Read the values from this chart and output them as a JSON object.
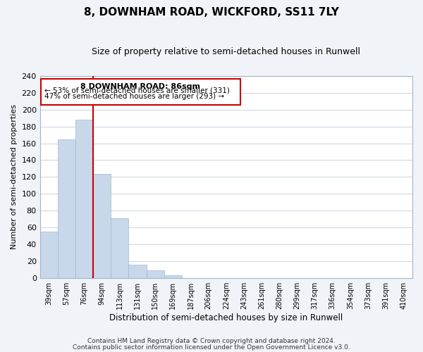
{
  "title": "8, DOWNHAM ROAD, WICKFORD, SS11 7LY",
  "subtitle": "Size of property relative to semi-detached houses in Runwell",
  "xlabel": "Distribution of semi-detached houses by size in Runwell",
  "ylabel": "Number of semi-detached properties",
  "bar_color": "#c8d8ea",
  "bar_edge_color": "#a0b8cc",
  "bin_labels": [
    "39sqm",
    "57sqm",
    "76sqm",
    "94sqm",
    "113sqm",
    "131sqm",
    "150sqm",
    "169sqm",
    "187sqm",
    "206sqm",
    "224sqm",
    "243sqm",
    "261sqm",
    "280sqm",
    "299sqm",
    "317sqm",
    "336sqm",
    "354sqm",
    "373sqm",
    "391sqm",
    "410sqm"
  ],
  "bar_values": [
    55,
    165,
    188,
    124,
    71,
    16,
    9,
    3,
    0,
    0,
    0,
    0,
    0,
    0,
    0,
    0,
    0,
    0,
    0,
    0,
    0
  ],
  "ylim": [
    0,
    240
  ],
  "yticks": [
    0,
    20,
    40,
    60,
    80,
    100,
    120,
    140,
    160,
    180,
    200,
    220,
    240
  ],
  "vline_x": 2.5,
  "annotation_title": "8 DOWNHAM ROAD: 86sqm",
  "annotation_line1": "← 53% of semi-detached houses are smaller (331)",
  "annotation_line2": "47% of semi-detached houses are larger (293) →",
  "footer1": "Contains HM Land Registry data © Crown copyright and database right 2024.",
  "footer2": "Contains public sector information licensed under the Open Government Licence v3.0.",
  "background_color": "#f0f4f8",
  "plot_background": "#ffffff",
  "grid_color": "#c8d4e0",
  "vline_color": "#cc0000",
  "annotation_box_color": "#ffffff",
  "annotation_box_edge": "#cc0000",
  "title_fontsize": 11,
  "subtitle_fontsize": 9
}
